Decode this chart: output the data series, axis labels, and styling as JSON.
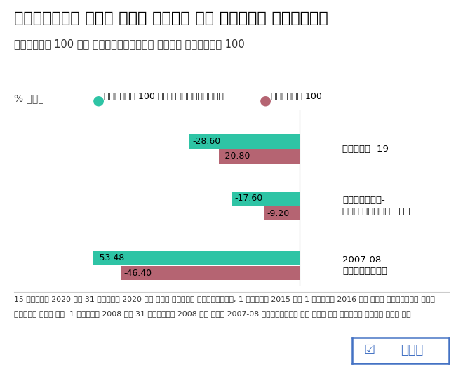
{
  "title": "मार्केट में उथल पुथल के दौरान रिटर्न",
  "subtitle": "निफ्टी 100 लो वोलैटिलिटी बनाम निफ्टी 100",
  "ylabel": "% में",
  "legend_low_vol": "निफ्टी 100 लो वोलैटिलिटी",
  "legend_nifty": "निफ्टी 100",
  "categories": [
    "कोविड -19",
    "अमेरिका-\nचीन ट्रेड वॉर",
    "2007-08\nक्राइसिस"
  ],
  "low_vol_values": [
    -28.6,
    -17.6,
    -53.48
  ],
  "nifty_values": [
    -20.8,
    -9.2,
    -46.4
  ],
  "low_vol_color": "#2EC4A5",
  "nifty_color": "#B56472",
  "background_color": "#FFFFFF",
  "footnote_line1": "15 फरवरी 2020 से 31 मार्च 2020 के बीच कोविड क्राइसिस, 1 मार्च 2015 से 1 मार्च 2016 के बीच अमेरिका-चीन",
  "footnote_line2": "ट्रेड वॉर और  1 जनवरी 2008 से 31 दिसंबर 2008 के बीच 2007-08 क्राइसिस के दौर को शामिल किया गया है",
  "brand": "धनक",
  "xlim": [
    -62,
    10
  ],
  "group_positions": [
    5.0,
    2.8,
    0.5
  ],
  "bar_height": 0.55,
  "bar_gap": 0.58
}
